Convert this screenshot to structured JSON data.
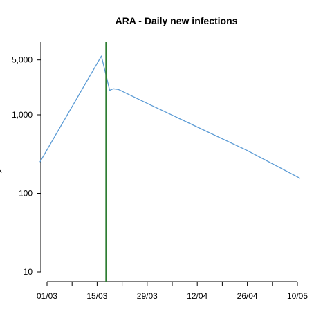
{
  "chart_data": {
    "type": "line",
    "title": "ARA - Daily new infections",
    "xlabel": "",
    "ylabel": "",
    "yscale": "log",
    "ylim": [
      10,
      6000
    ],
    "y_ticks": [
      {
        "value": 10,
        "label": "10"
      },
      {
        "value": 100,
        "label": "100"
      },
      {
        "value": 1000,
        "label": "1,000"
      },
      {
        "value": 5000,
        "label": "5,000"
      }
    ],
    "x_start": "2020-02-28",
    "x_end": "2020-05-10",
    "x_tick_labels": [
      {
        "day": 2,
        "label": "01/03"
      },
      {
        "day": 16,
        "label": "15/03"
      },
      {
        "day": 30,
        "label": "29/03"
      },
      {
        "day": 44,
        "label": "12/04"
      },
      {
        "day": 58,
        "label": "26/04"
      },
      {
        "day": 72,
        "label": "10/05"
      }
    ],
    "x_minor_ticks": [
      9,
      23,
      37,
      51,
      65
    ],
    "vertical_marker": {
      "day": 18.5,
      "color": "#2e7d32"
    },
    "series": [
      {
        "name": "Daily new infections",
        "color": "#5b9bd5",
        "x": [
          0,
          17.2,
          18.8,
          19.5,
          20.5,
          22,
          30,
          44,
          58,
          72.8
        ],
        "y": [
          250,
          5600,
          2800,
          2050,
          2150,
          2100,
          1400,
          700,
          350,
          155
        ]
      }
    ]
  }
}
